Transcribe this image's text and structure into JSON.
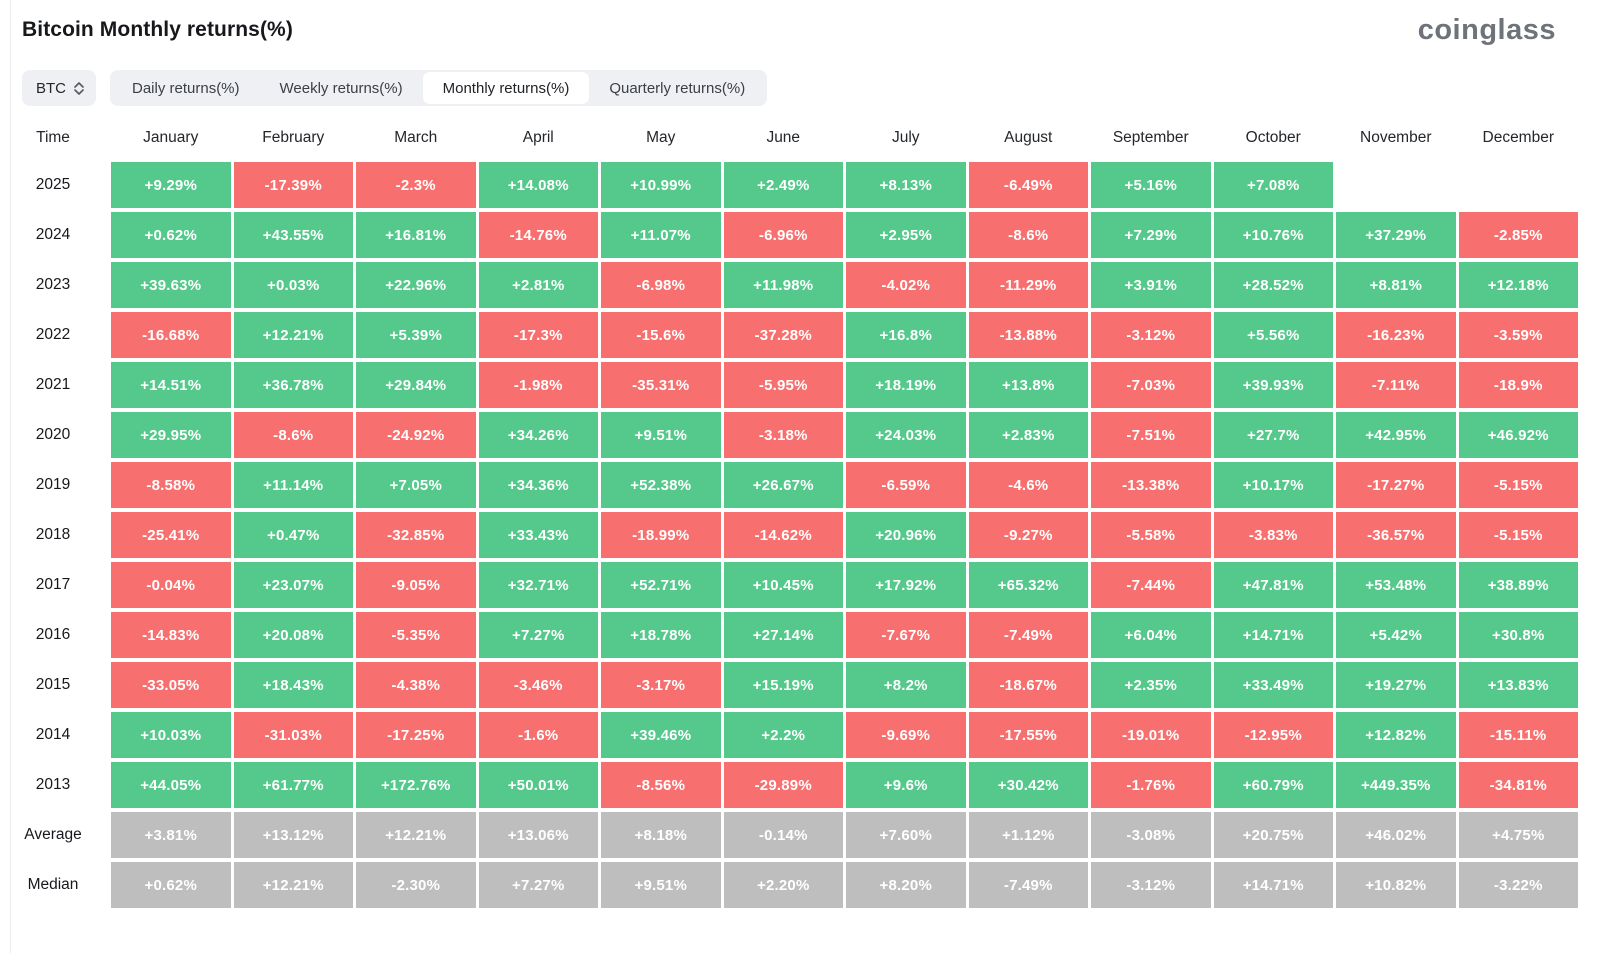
{
  "header": {
    "title": "Bitcoin Monthly returns(%)",
    "logo": "coinglass"
  },
  "controls": {
    "symbol_selector": {
      "value": "BTC",
      "icon": "chevron-up-down-icon"
    },
    "tabs": [
      {
        "id": "daily",
        "label": "Daily returns(%)",
        "active": false
      },
      {
        "id": "weekly",
        "label": "Weekly returns(%)",
        "active": false
      },
      {
        "id": "monthly",
        "label": "Monthly returns(%)",
        "active": true
      },
      {
        "id": "quarterly",
        "label": "Quarterly returns(%)",
        "active": false
      }
    ]
  },
  "chart_data": {
    "type": "heatmap",
    "title": "Bitcoin Monthly returns(%)",
    "time_label": "Time",
    "months": [
      "January",
      "February",
      "March",
      "April",
      "May",
      "June",
      "July",
      "August",
      "September",
      "October",
      "November",
      "December"
    ],
    "colors": {
      "positive": "#54c98b",
      "negative": "#f7706f",
      "summary": "#bebebe",
      "cell_text": "#ffffff"
    },
    "rows": [
      {
        "label": "2025",
        "summary": false,
        "values": [
          "+9.29%",
          "-17.39%",
          "-2.3%",
          "+14.08%",
          "+10.99%",
          "+2.49%",
          "+8.13%",
          "-6.49%",
          "+5.16%",
          "+7.08%",
          "",
          ""
        ]
      },
      {
        "label": "2024",
        "summary": false,
        "values": [
          "+0.62%",
          "+43.55%",
          "+16.81%",
          "-14.76%",
          "+11.07%",
          "-6.96%",
          "+2.95%",
          "-8.6%",
          "+7.29%",
          "+10.76%",
          "+37.29%",
          "-2.85%"
        ]
      },
      {
        "label": "2023",
        "summary": false,
        "values": [
          "+39.63%",
          "+0.03%",
          "+22.96%",
          "+2.81%",
          "-6.98%",
          "+11.98%",
          "-4.02%",
          "-11.29%",
          "+3.91%",
          "+28.52%",
          "+8.81%",
          "+12.18%"
        ]
      },
      {
        "label": "2022",
        "summary": false,
        "values": [
          "-16.68%",
          "+12.21%",
          "+5.39%",
          "-17.3%",
          "-15.6%",
          "-37.28%",
          "+16.8%",
          "-13.88%",
          "-3.12%",
          "+5.56%",
          "-16.23%",
          "-3.59%"
        ]
      },
      {
        "label": "2021",
        "summary": false,
        "values": [
          "+14.51%",
          "+36.78%",
          "+29.84%",
          "-1.98%",
          "-35.31%",
          "-5.95%",
          "+18.19%",
          "+13.8%",
          "-7.03%",
          "+39.93%",
          "-7.11%",
          "-18.9%"
        ]
      },
      {
        "label": "2020",
        "summary": false,
        "values": [
          "+29.95%",
          "-8.6%",
          "-24.92%",
          "+34.26%",
          "+9.51%",
          "-3.18%",
          "+24.03%",
          "+2.83%",
          "-7.51%",
          "+27.7%",
          "+42.95%",
          "+46.92%"
        ]
      },
      {
        "label": "2019",
        "summary": false,
        "values": [
          "-8.58%",
          "+11.14%",
          "+7.05%",
          "+34.36%",
          "+52.38%",
          "+26.67%",
          "-6.59%",
          "-4.6%",
          "-13.38%",
          "+10.17%",
          "-17.27%",
          "-5.15%"
        ]
      },
      {
        "label": "2018",
        "summary": false,
        "values": [
          "-25.41%",
          "+0.47%",
          "-32.85%",
          "+33.43%",
          "-18.99%",
          "-14.62%",
          "+20.96%",
          "-9.27%",
          "-5.58%",
          "-3.83%",
          "-36.57%",
          "-5.15%"
        ]
      },
      {
        "label": "2017",
        "summary": false,
        "values": [
          "-0.04%",
          "+23.07%",
          "-9.05%",
          "+32.71%",
          "+52.71%",
          "+10.45%",
          "+17.92%",
          "+65.32%",
          "-7.44%",
          "+47.81%",
          "+53.48%",
          "+38.89%"
        ]
      },
      {
        "label": "2016",
        "summary": false,
        "values": [
          "-14.83%",
          "+20.08%",
          "-5.35%",
          "+7.27%",
          "+18.78%",
          "+27.14%",
          "-7.67%",
          "-7.49%",
          "+6.04%",
          "+14.71%",
          "+5.42%",
          "+30.8%"
        ]
      },
      {
        "label": "2015",
        "summary": false,
        "values": [
          "-33.05%",
          "+18.43%",
          "-4.38%",
          "-3.46%",
          "-3.17%",
          "+15.19%",
          "+8.2%",
          "-18.67%",
          "+2.35%",
          "+33.49%",
          "+19.27%",
          "+13.83%"
        ]
      },
      {
        "label": "2014",
        "summary": false,
        "values": [
          "+10.03%",
          "-31.03%",
          "-17.25%",
          "-1.6%",
          "+39.46%",
          "+2.2%",
          "-9.69%",
          "-17.55%",
          "-19.01%",
          "-12.95%",
          "+12.82%",
          "-15.11%"
        ]
      },
      {
        "label": "2013",
        "summary": false,
        "values": [
          "+44.05%",
          "+61.77%",
          "+172.76%",
          "+50.01%",
          "-8.56%",
          "-29.89%",
          "+9.6%",
          "+30.42%",
          "-1.76%",
          "+60.79%",
          "+449.35%",
          "-34.81%"
        ]
      },
      {
        "label": "Average",
        "summary": true,
        "values": [
          "+3.81%",
          "+13.12%",
          "+12.21%",
          "+13.06%",
          "+8.18%",
          "-0.14%",
          "+7.60%",
          "+1.12%",
          "-3.08%",
          "+20.75%",
          "+46.02%",
          "+4.75%"
        ]
      },
      {
        "label": "Median",
        "summary": true,
        "values": [
          "+0.62%",
          "+12.21%",
          "-2.30%",
          "+7.27%",
          "+9.51%",
          "+2.20%",
          "+8.20%",
          "-7.49%",
          "-3.12%",
          "+14.71%",
          "+10.82%",
          "-3.22%"
        ]
      }
    ]
  }
}
